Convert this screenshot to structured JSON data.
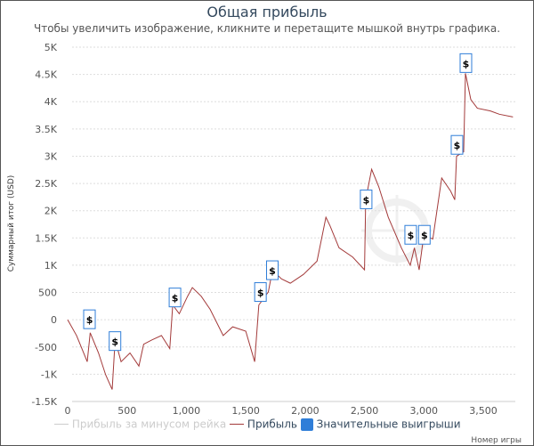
{
  "chart_data": {
    "type": "line",
    "title": "Общая прибыль",
    "subtitle": "Чтобы увеличить изображение, кликните и перетащите мышкой внутрь графика.",
    "xlabel": "Номер игры",
    "ylabel": "Суммарный итог (USD)",
    "xlim": [
      0,
      3780
    ],
    "ylim": [
      -1500,
      5000
    ],
    "xticks": [
      "0",
      "500",
      "1,000",
      "1,500",
      "2,000",
      "2,500",
      "3,000",
      "3,500"
    ],
    "xtick_values": [
      0,
      500,
      1000,
      1500,
      2000,
      2500,
      3000,
      3500
    ],
    "yticks": [
      "5K",
      "4.5K",
      "4K",
      "3.5K",
      "3K",
      "2.5K",
      "2K",
      "1.5K",
      "1K",
      "500",
      "0",
      "-500",
      "-1K",
      "-1.5K"
    ],
    "ytick_values": [
      5000,
      4500,
      4000,
      3500,
      3000,
      2500,
      2000,
      1500,
      1000,
      500,
      0,
      -500,
      -1000,
      -1500
    ],
    "watermark": "SHARK SCOPE",
    "legend": [
      "Прибыль за минусом рейка",
      "Прибыль",
      "Значительные выигрыши"
    ],
    "series": [
      {
        "name": "Прибыль",
        "color": "#a33a3a",
        "points": [
          [
            0,
            0
          ],
          [
            75,
            -290
          ],
          [
            165,
            -770
          ],
          [
            190,
            -240
          ],
          [
            260,
            -610
          ],
          [
            320,
            -1010
          ],
          [
            375,
            -1280
          ],
          [
            400,
            -370
          ],
          [
            450,
            -770
          ],
          [
            525,
            -610
          ],
          [
            600,
            -850
          ],
          [
            640,
            -450
          ],
          [
            710,
            -370
          ],
          [
            790,
            -290
          ],
          [
            860,
            -530
          ],
          [
            885,
            270
          ],
          [
            940,
            110
          ],
          [
            1010,
            430
          ],
          [
            1050,
            590
          ],
          [
            1125,
            430
          ],
          [
            1200,
            190
          ],
          [
            1310,
            -290
          ],
          [
            1390,
            -130
          ],
          [
            1500,
            -210
          ],
          [
            1575,
            -770
          ],
          [
            1610,
            270
          ],
          [
            1690,
            510
          ],
          [
            1725,
            910
          ],
          [
            1800,
            750
          ],
          [
            1875,
            670
          ],
          [
            1985,
            830
          ],
          [
            2100,
            1075
          ],
          [
            2175,
            1880
          ],
          [
            2210,
            1720
          ],
          [
            2285,
            1320
          ],
          [
            2400,
            1150
          ],
          [
            2500,
            915
          ],
          [
            2510,
            2200
          ],
          [
            2560,
            2760
          ],
          [
            2620,
            2440
          ],
          [
            2700,
            1880
          ],
          [
            2810,
            1320
          ],
          [
            2885,
            1000
          ],
          [
            2920,
            1320
          ],
          [
            2960,
            915
          ],
          [
            3000,
            1560
          ],
          [
            3075,
            1480
          ],
          [
            3150,
            2600
          ],
          [
            3225,
            2360
          ],
          [
            3260,
            2200
          ],
          [
            3275,
            3000
          ],
          [
            3335,
            3080
          ],
          [
            3350,
            4520
          ],
          [
            3395,
            4040
          ],
          [
            3450,
            3880
          ],
          [
            3560,
            3830
          ],
          [
            3635,
            3770
          ],
          [
            3750,
            3720
          ]
        ]
      }
    ],
    "big_wins": {
      "label": "$",
      "x": [
        180,
        395,
        900,
        1620,
        1720,
        2510,
        2885,
        3000,
        3275,
        3350
      ],
      "y": [
        0,
        -400,
        400,
        500,
        900,
        2200,
        1550,
        1550,
        3200,
        4700
      ]
    }
  }
}
